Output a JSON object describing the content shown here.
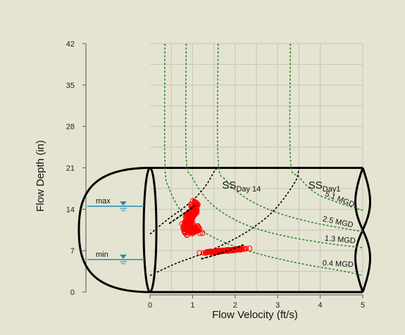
{
  "colors": {
    "background": "#e5e4d2",
    "grid": "#c6c6b4",
    "axis": "#555555",
    "pipe": "#000000",
    "curve": "#2f8a2f",
    "scatter": "#ff0000",
    "fit": "#000000",
    "water_marker": "#1f8fb0"
  },
  "chart_data": {
    "type": "scatter",
    "title": "",
    "xlabel": "Flow Velocity (ft/s)",
    "ylabel": "Flow Depth (in)",
    "xlim": [
      0,
      5
    ],
    "ylim": [
      0,
      42
    ],
    "x_ticks": [
      "0",
      "1",
      "2",
      "3",
      "4",
      "5"
    ],
    "y_ticks": [
      "0",
      "7",
      "14",
      "21",
      "28",
      "35",
      "42"
    ],
    "grid": true,
    "pipe_diameter_in": 21,
    "depth_markers": [
      {
        "label": "max",
        "depth": 14.5
      },
      {
        "label": "min",
        "depth": 5.5
      }
    ],
    "iso_flow_curves": [
      {
        "label": "5.1 MGD",
        "asymptote_velocity": 3.3,
        "points": [
          [
            3.3,
            42
          ],
          [
            3.3,
            22.5
          ],
          [
            3.5,
            19.5
          ],
          [
            3.9,
            16.7
          ],
          [
            4.4,
            15.2
          ],
          [
            5.0,
            13.8
          ]
        ]
      },
      {
        "label": "2.5 MGD",
        "asymptote_velocity": 1.6,
        "points": [
          [
            1.6,
            42
          ],
          [
            1.6,
            22.5
          ],
          [
            1.8,
            18.8
          ],
          [
            2.3,
            15.7
          ],
          [
            3.0,
            13.4
          ],
          [
            3.8,
            11.8
          ],
          [
            4.6,
            10.7
          ],
          [
            5.0,
            10.2
          ]
        ]
      },
      {
        "label": "1.3 MGD",
        "asymptote_velocity": 0.85,
        "points": [
          [
            0.85,
            42
          ],
          [
            0.85,
            23
          ],
          [
            1.0,
            19.3
          ],
          [
            1.4,
            15.2
          ],
          [
            2.0,
            12.2
          ],
          [
            2.7,
            10.3
          ],
          [
            3.5,
            9.0
          ],
          [
            4.3,
            8.1
          ],
          [
            5.0,
            7.5
          ]
        ]
      },
      {
        "label": "0.4 MGD",
        "asymptote_velocity": 0.35,
        "points": [
          [
            0.35,
            42
          ],
          [
            0.35,
            22
          ],
          [
            0.45,
            17.5
          ],
          [
            0.8,
            13.0
          ],
          [
            1.3,
            10.0
          ],
          [
            2.0,
            7.7
          ],
          [
            2.8,
            6.0
          ],
          [
            3.7,
            4.6
          ],
          [
            4.5,
            3.6
          ],
          [
            5.0,
            2.8
          ]
        ]
      }
    ],
    "self_cleansing_curves": [
      {
        "label": "SS",
        "subscript": "Day 14",
        "points": [
          [
            0.0,
            9.8
          ],
          [
            0.4,
            12.2
          ],
          [
            0.8,
            14.3
          ],
          [
            1.1,
            16.2
          ],
          [
            1.35,
            18.4
          ],
          [
            1.5,
            20.3
          ],
          [
            1.58,
            21.0
          ]
        ]
      },
      {
        "label": "SS",
        "subscript": "Day1",
        "points": [
          [
            0.0,
            2.8
          ],
          [
            0.6,
            4.8
          ],
          [
            1.2,
            6.4
          ],
          [
            1.8,
            8.3
          ],
          [
            2.3,
            10.3
          ],
          [
            2.8,
            13.0
          ],
          [
            3.1,
            15.4
          ],
          [
            3.3,
            17.4
          ],
          [
            3.45,
            19.2
          ],
          [
            3.5,
            21.0
          ]
        ]
      }
    ],
    "scatter_clusters": [
      {
        "cx": 0.95,
        "cy": 12.8,
        "rx": 0.35,
        "ry": 2.2,
        "n": 240,
        "dir": [
          0.35,
          0.95
        ],
        "offset": [
          0.28,
          -0.6
        ]
      },
      {
        "cx": 1.0,
        "cy": 10.5,
        "rx": 0.3,
        "ry": 1.4,
        "n": 90
      },
      {
        "cx": 1.75,
        "cy": 7.0,
        "rx": 0.5,
        "ry": 0.4,
        "n": 130,
        "dir": [
          1.0,
          0.9
        ]
      }
    ]
  }
}
